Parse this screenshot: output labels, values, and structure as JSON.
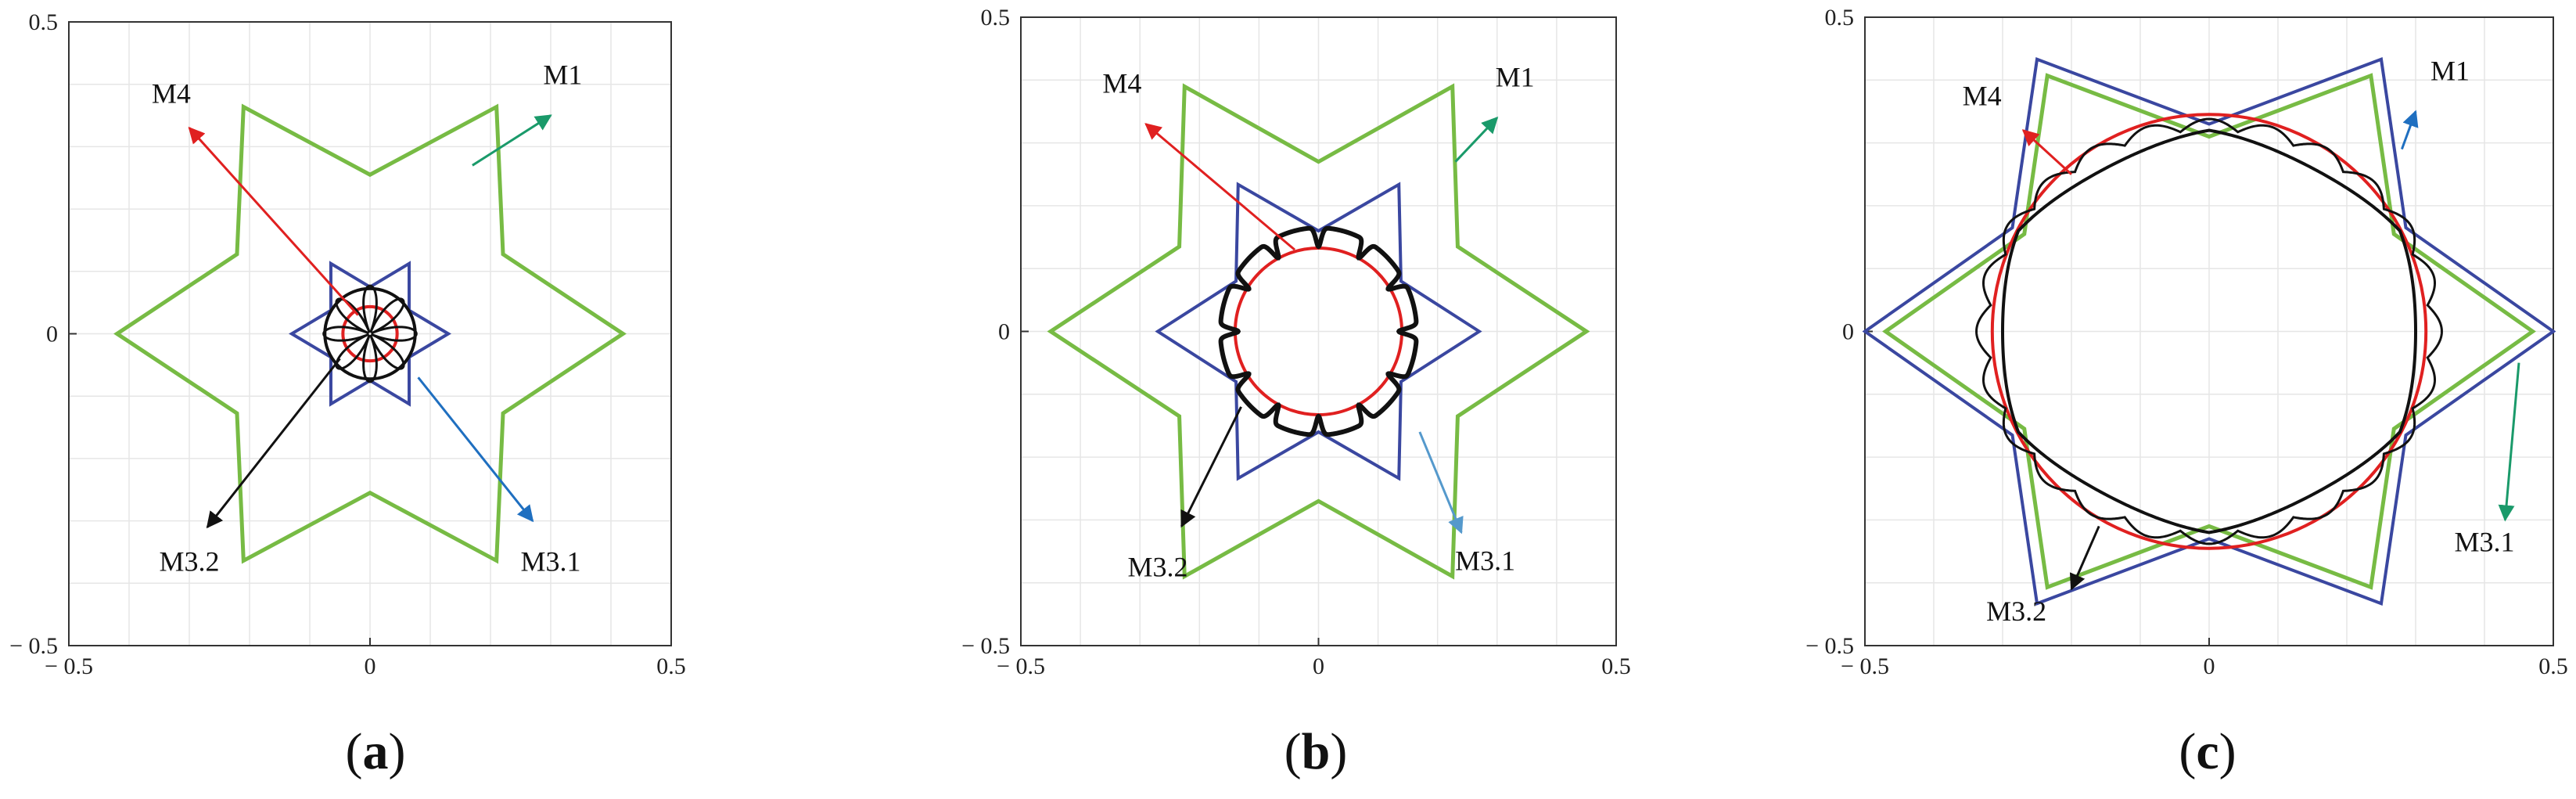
{
  "chart_data": [
    {
      "type": "line",
      "caption": "a",
      "xlim": [
        -0.5,
        0.5
      ],
      "ylim": [
        -0.5,
        0.5
      ],
      "xticks": [
        "− 0.5",
        "0",
        "0.5"
      ],
      "yticks": [
        "− 0.5",
        "0",
        "0.5"
      ],
      "xtick_values": [
        -0.5,
        0,
        0.5
      ],
      "ytick_values": [
        -0.5,
        0,
        0.5
      ],
      "grid": true,
      "curves": {
        "M1": {
          "color": "#77bb44",
          "outer": 0.42,
          "inner": 0.255,
          "curved_arc": true
        },
        "M3_1": {
          "color": "#3a47a0",
          "outer": 0.13,
          "inner": 0.075
        },
        "M4": {
          "color": "#e02020",
          "radius": 0.045
        },
        "M3_2": {
          "color": "#111111",
          "radius": 0.075,
          "petal": 0.075
        }
      },
      "annotations": [
        {
          "label": "M1",
          "text_at": [
            0.32,
            0.4
          ],
          "arrow_from": [
            0.17,
            0.27
          ],
          "arrow_to": [
            0.3,
            0.35
          ],
          "color": "#1a9a6a"
        },
        {
          "label": "M4",
          "text_at": [
            -0.33,
            0.37
          ],
          "arrow_from": [
            -0.02,
            0.03
          ],
          "arrow_to": [
            -0.3,
            0.33
          ],
          "color": "#e02020"
        },
        {
          "label": "M3.1",
          "text_at": [
            0.3,
            -0.38
          ],
          "arrow_from": [
            0.08,
            -0.07
          ],
          "arrow_to": [
            0.27,
            -0.3
          ],
          "color": "#1f6fc0"
        },
        {
          "label": "M3.2",
          "text_at": [
            -0.3,
            -0.38
          ],
          "arrow_from": [
            -0.05,
            -0.04
          ],
          "arrow_to": [
            -0.27,
            -0.31
          ],
          "color": "#111111"
        }
      ]
    },
    {
      "type": "line",
      "caption": "b",
      "xlim": [
        -0.5,
        0.5
      ],
      "ylim": [
        -0.5,
        0.5
      ],
      "xticks": [
        "− 0.5",
        "0",
        "0.5"
      ],
      "yticks": [
        "− 0.5",
        "0",
        "0.5"
      ],
      "xtick_values": [
        -0.5,
        0,
        0.5
      ],
      "ytick_values": [
        -0.5,
        0,
        0.5
      ],
      "grid": true,
      "curves": {
        "M1": {
          "color": "#77bb44",
          "outer": 0.45,
          "inner": 0.27,
          "curved_arc": true
        },
        "M3_1": {
          "color": "#3a47a0",
          "outer": 0.27,
          "inner": 0.16
        },
        "M4": {
          "color": "#e02020",
          "radius": 0.14
        },
        "M3_2": {
          "color": "#111111",
          "radius": 0.165,
          "spike": 0.03
        }
      },
      "annotations": [
        {
          "label": "M1",
          "text_at": [
            0.33,
            0.39
          ],
          "arrow_from": [
            0.23,
            0.27
          ],
          "arrow_to": [
            0.3,
            0.34
          ],
          "color": "#1a9a6a"
        },
        {
          "label": "M4",
          "text_at": [
            -0.33,
            0.38
          ],
          "arrow_from": [
            -0.04,
            0.13
          ],
          "arrow_to": [
            -0.29,
            0.33
          ],
          "color": "#e02020"
        },
        {
          "label": "M3.1",
          "text_at": [
            0.28,
            -0.38
          ],
          "arrow_from": [
            0.17,
            -0.16
          ],
          "arrow_to": [
            0.24,
            -0.32
          ],
          "color": "#5599cc"
        },
        {
          "label": "M3.2",
          "text_at": [
            -0.27,
            -0.39
          ],
          "arrow_from": [
            -0.13,
            -0.12
          ],
          "arrow_to": [
            -0.23,
            -0.31
          ],
          "color": "#111111"
        }
      ]
    },
    {
      "type": "line",
      "caption": "c",
      "xlim": [
        -0.5,
        0.5
      ],
      "ylim": [
        -0.5,
        0.5
      ],
      "xticks": [
        "− 0.5",
        "0",
        "0.5"
      ],
      "yticks": [
        "− 0.5",
        "0",
        "0.5"
      ],
      "xtick_values": [
        -0.5,
        0,
        0.5
      ],
      "ytick_values": [
        -0.5,
        0,
        0.5
      ],
      "grid": true,
      "curves": {
        "M1": {
          "color": "#77bb44",
          "outer": 0.47,
          "inner": 0.31
        },
        "M3_1": {
          "color": "#3a47a0",
          "outer": 0.5,
          "inner": 0.33
        },
        "M4": {
          "color": "#e02020",
          "radius": 0.315
        },
        "M3_2": {
          "color": "#111111",
          "radius": 0.32,
          "scallop": 0.018
        }
      },
      "annotations": [
        {
          "label": "M1",
          "text_at": [
            0.35,
            0.4
          ],
          "arrow_from": [
            0.28,
            0.29
          ],
          "arrow_to": [
            0.3,
            0.35
          ],
          "color": "#1f6fc0"
        },
        {
          "label": "M4",
          "text_at": [
            -0.33,
            0.36
          ],
          "arrow_from": [
            -0.2,
            0.25
          ],
          "arrow_to": [
            -0.27,
            0.32
          ],
          "color": "#e02020"
        },
        {
          "label": "M3.1",
          "text_at": [
            0.4,
            -0.35
          ],
          "arrow_from": [
            0.45,
            -0.05
          ],
          "arrow_to": [
            0.43,
            -0.3
          ],
          "color": "#1a9a6a"
        },
        {
          "label": "M3.2",
          "text_at": [
            -0.28,
            -0.46
          ],
          "arrow_from": [
            -0.16,
            -0.31
          ],
          "arrow_to": [
            -0.2,
            -0.41
          ],
          "color": "#111111"
        }
      ]
    }
  ]
}
